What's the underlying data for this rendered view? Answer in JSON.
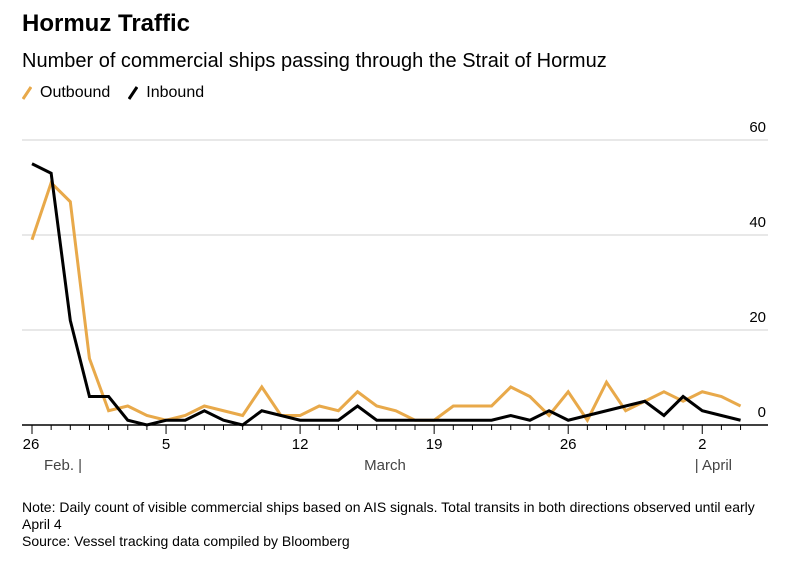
{
  "title": "Hormuz Traffic",
  "subtitle": "Number of commercial ships passing through the Strait of Hormuz",
  "note": "Note: Daily count of visible commercial ships based on AIS signals. Total transits in both directions observed until early April 4",
  "source": "Source: Vessel tracking data compiled by Bloomberg",
  "chart_data": {
    "type": "line",
    "x_start": "Feb 26",
    "x_end": "Apr 4",
    "x_tick_labels": [
      "26",
      "5",
      "12",
      "19",
      "26",
      "2"
    ],
    "month_labels": [
      "Feb. |",
      "March",
      "| April"
    ],
    "y_ticks": [
      "0",
      "20",
      "40",
      "60"
    ],
    "ylim": [
      0,
      60
    ],
    "grid": true,
    "legend_placement": "top-left",
    "series": [
      {
        "name": "Outbound",
        "color": "#e8a94a",
        "values": [
          39,
          51,
          47,
          14,
          3,
          4,
          2,
          1,
          2,
          4,
          3,
          2,
          8,
          2,
          2,
          4,
          3,
          7,
          4,
          3,
          1,
          1,
          4,
          4,
          4,
          8,
          6,
          2,
          7,
          1,
          9,
          3,
          5,
          7,
          5,
          7,
          6,
          4
        ]
      },
      {
        "name": "Inbound",
        "color": "#000000",
        "values": [
          55,
          53,
          22,
          6,
          6,
          1,
          0,
          1,
          1,
          3,
          1,
          0,
          3,
          2,
          1,
          1,
          1,
          4,
          1,
          1,
          1,
          1,
          1,
          1,
          1,
          2,
          1,
          3,
          1,
          2,
          3,
          4,
          5,
          2,
          6,
          3,
          2,
          1
        ]
      }
    ]
  }
}
